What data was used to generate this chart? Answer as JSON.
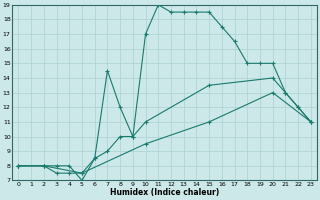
{
  "xlabel": "Humidex (Indice chaleur)",
  "bg_color": "#cce8e8",
  "grid_color": "#b0d4d4",
  "line_color": "#1a7a6e",
  "xlim": [
    -0.5,
    23.5
  ],
  "ylim": [
    7,
    19
  ],
  "xticks": [
    0,
    1,
    2,
    3,
    4,
    5,
    6,
    7,
    8,
    9,
    10,
    11,
    12,
    13,
    14,
    15,
    16,
    17,
    18,
    19,
    20,
    21,
    22,
    23
  ],
  "yticks": [
    7,
    8,
    9,
    10,
    11,
    12,
    13,
    14,
    15,
    16,
    17,
    18,
    19
  ],
  "lines": [
    {
      "x": [
        0,
        2,
        5,
        10,
        15,
        20,
        23
      ],
      "y": [
        8,
        8,
        7.5,
        9.5,
        11,
        13,
        11
      ]
    },
    {
      "x": [
        0,
        2,
        3,
        4,
        5,
        6,
        7,
        8,
        9,
        10,
        15,
        20,
        21,
        22,
        23
      ],
      "y": [
        8,
        8,
        7.5,
        7.5,
        7.5,
        8.5,
        9,
        10,
        10,
        11,
        13.5,
        14,
        13,
        12,
        11
      ]
    },
    {
      "x": [
        0,
        2,
        3,
        4,
        5,
        6,
        7,
        8,
        9,
        10,
        11,
        12,
        13,
        14,
        15,
        16,
        17,
        18,
        19,
        20,
        21,
        22,
        23
      ],
      "y": [
        8,
        8,
        8,
        8,
        7,
        8.5,
        14.5,
        12,
        10,
        17,
        19,
        18.5,
        18.5,
        18.5,
        18.5,
        17.5,
        16.5,
        15,
        15,
        15,
        13,
        12,
        11
      ]
    }
  ]
}
